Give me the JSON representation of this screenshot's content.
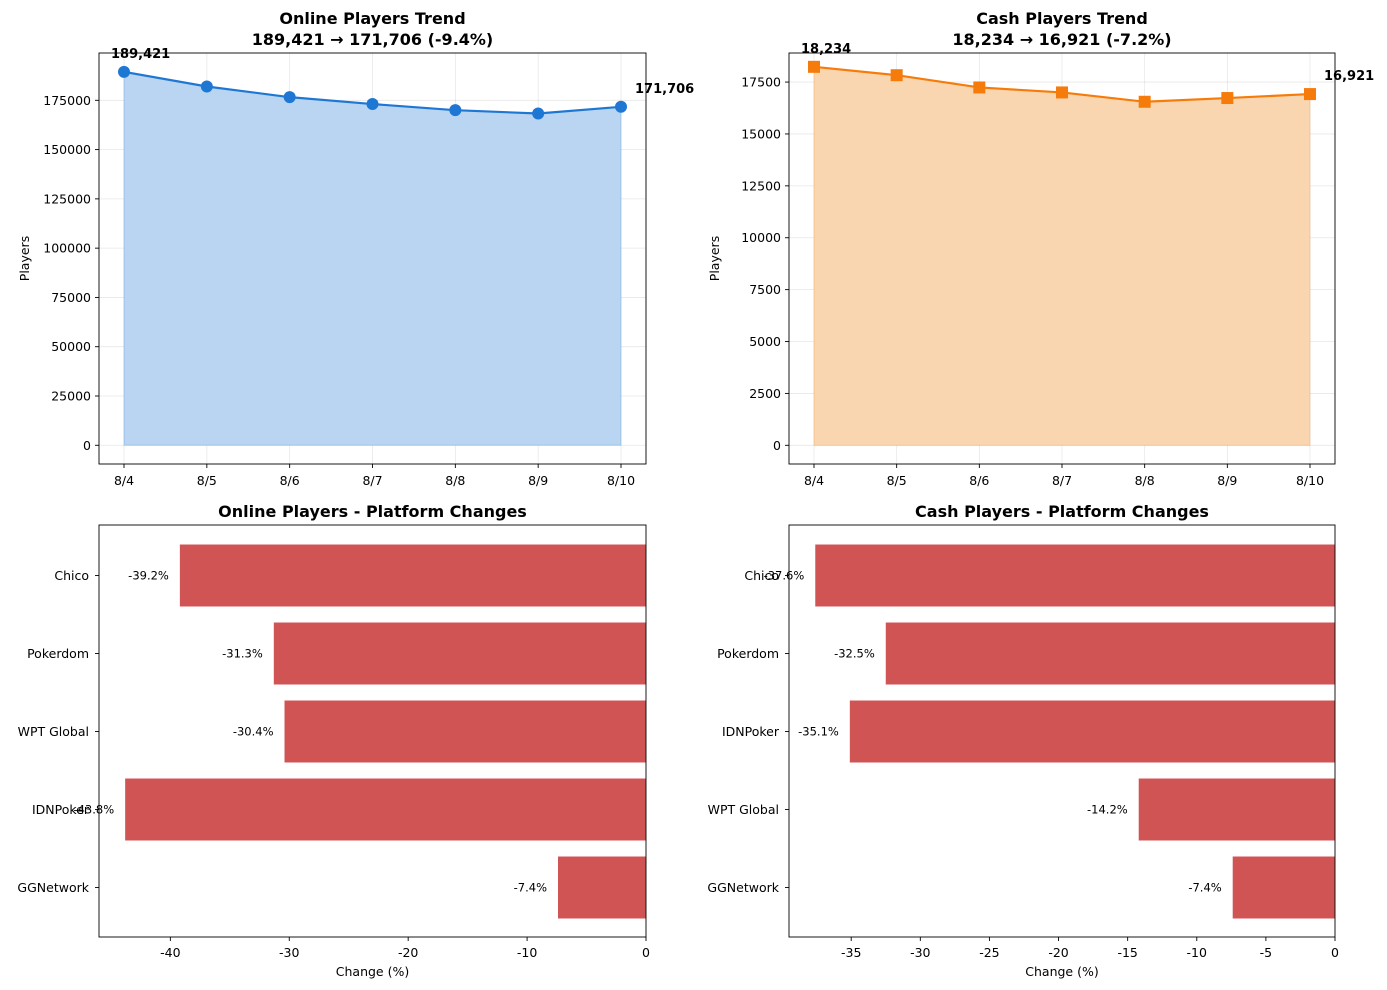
{
  "chart_data": [
    {
      "type": "line",
      "title": "Online Players Trend",
      "subtitle": "189,421 → 171,706 (-9.4%)",
      "xlabel": "",
      "ylabel": "Players",
      "x": [
        "8/4",
        "8/5",
        "8/6",
        "8/7",
        "8/8",
        "8/9",
        "8/10"
      ],
      "series": [
        {
          "values": [
            189421,
            182000,
            176600,
            173100,
            170000,
            168300,
            171706
          ]
        }
      ],
      "ylim": [
        -9500,
        199000
      ],
      "yticks": [
        0,
        25000,
        50000,
        75000,
        100000,
        125000,
        150000,
        175000
      ],
      "yticklabels": [
        "0",
        "25000",
        "50000",
        "75000",
        "100000",
        "125000",
        "150000",
        "175000"
      ],
      "annotations": [
        {
          "point": 0,
          "text": "189,421"
        },
        {
          "point": 6,
          "text": "171,706"
        }
      ],
      "grid": true,
      "filled": true,
      "marker": "circle",
      "color": "#1f77d4",
      "fill_color": "#b9d5f1"
    },
    {
      "type": "line",
      "title": "Cash Players Trend",
      "subtitle": "18,234 → 16,921 (-7.2%)",
      "xlabel": "",
      "ylabel": "Players",
      "x": [
        "8/4",
        "8/5",
        "8/6",
        "8/7",
        "8/8",
        "8/9",
        "8/10"
      ],
      "series": [
        {
          "values": [
            18234,
            17830,
            17240,
            17000,
            16550,
            16730,
            16921
          ]
        }
      ],
      "ylim": [
        -900,
        18900
      ],
      "yticks": [
        0,
        2500,
        5000,
        7500,
        10000,
        12500,
        15000,
        17500
      ],
      "yticklabels": [
        "0",
        "2500",
        "5000",
        "7500",
        "10000",
        "12500",
        "15000",
        "17500"
      ],
      "annotations": [
        {
          "point": 0,
          "text": "18,234"
        },
        {
          "point": 6,
          "text": "16,921"
        }
      ],
      "grid": true,
      "filled": true,
      "marker": "square",
      "color": "#f57c0a",
      "fill_color": "#fad6b0"
    },
    {
      "type": "bar",
      "orientation": "horizontal",
      "title": "Online Players - Platform Changes",
      "xlabel": "Change (%)",
      "ylabel": "",
      "categories": [
        "Chico",
        "Pokerdom",
        "WPT Global",
        "IDNPoker",
        "GGNetwork"
      ],
      "values": [
        -39.2,
        -31.3,
        -30.4,
        -43.8,
        -7.4
      ],
      "labels": [
        "-39.2%",
        "-31.3%",
        "-30.4%",
        "-43.8%",
        "-7.4%"
      ],
      "xlim": [
        -46,
        0
      ],
      "xticks": [
        -40,
        -30,
        -20,
        -10,
        0
      ],
      "xticklabels": [
        "-40",
        "-30",
        "-20",
        "-10",
        "0"
      ],
      "color": "#d15454"
    },
    {
      "type": "bar",
      "orientation": "horizontal",
      "title": "Cash Players - Platform Changes",
      "xlabel": "Change (%)",
      "ylabel": "",
      "categories": [
        "Chico",
        "Pokerdom",
        "IDNPoker",
        "WPT Global",
        "GGNetwork"
      ],
      "values": [
        -37.6,
        -32.5,
        -35.1,
        -14.2,
        -7.4
      ],
      "labels": [
        "-37.6%",
        "-32.5%",
        "-35.1%",
        "-14.2%",
        "-7.4%"
      ],
      "xlim": [
        -39.5,
        0
      ],
      "xticks": [
        -35,
        -30,
        -25,
        -20,
        -15,
        -10,
        -5,
        0
      ],
      "xticklabels": [
        "-35",
        "-30",
        "-25",
        "-20",
        "-15",
        "-10",
        "-5",
        "0"
      ],
      "color": "#d15454"
    }
  ]
}
